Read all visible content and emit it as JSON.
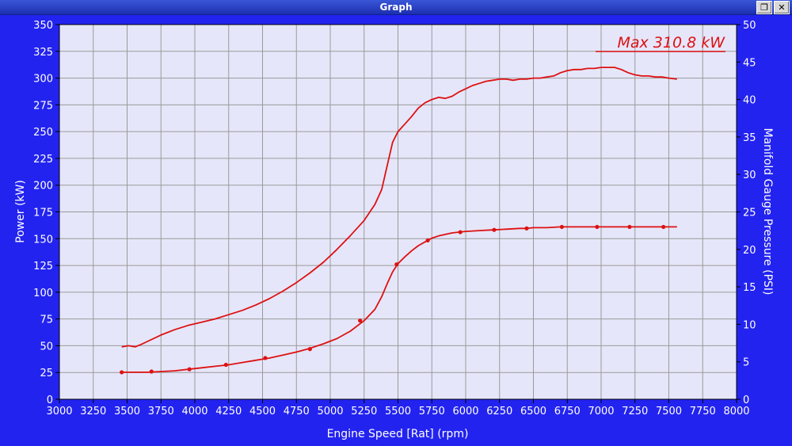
{
  "window": {
    "title": "Graph",
    "restore_symbol": "❐",
    "close_symbol": "✕"
  },
  "chart_data": {
    "type": "line",
    "xlabel": "Engine Speed [Rat] (rpm)",
    "ylabel_left": "Power (kW)",
    "ylabel_right": "Manifold Gauge Pressure (PSI)",
    "annotation": "Max 310.8 kW",
    "grid": true,
    "xlim": [
      3000,
      8000
    ],
    "ylim_left": [
      0,
      350
    ],
    "ylim_right": [
      0,
      50
    ],
    "xticks": [
      "3000",
      "3250",
      "3500",
      "3750",
      "4000",
      "4250",
      "4500",
      "4750",
      "5000",
      "5250",
      "5500",
      "5750",
      "6000",
      "6250",
      "6500",
      "6750",
      "7000",
      "7250",
      "7500",
      "7750",
      "8000"
    ],
    "yticks_left": [
      "0",
      "25",
      "50",
      "75",
      "100",
      "125",
      "150",
      "175",
      "200",
      "225",
      "250",
      "275",
      "300",
      "325",
      "350"
    ],
    "yticks_right": [
      "0",
      "5",
      "10",
      "15",
      "20",
      "25",
      "30",
      "35",
      "40",
      "45",
      "50"
    ],
    "colors": {
      "line": "#dd1111",
      "plot_bg": "#e6e6fa",
      "grid": "#9a9a9a",
      "frame_bg": "#2323f0",
      "tick_text": "#ffffff"
    },
    "series": [
      {
        "axis": "left",
        "markers": false,
        "x": [
          3460,
          3510,
          3560,
          3600,
          3650,
          3750,
          3850,
          3950,
          4050,
          4150,
          4250,
          4350,
          4450,
          4550,
          4650,
          4750,
          4850,
          4950,
          5050,
          5150,
          5250,
          5330,
          5380,
          5420,
          5460,
          5500,
          5550,
          5600,
          5650,
          5700,
          5750,
          5800,
          5850,
          5900,
          5950,
          6000,
          6050,
          6100,
          6150,
          6200,
          6250,
          6300,
          6350,
          6400,
          6450,
          6500,
          6550,
          6600,
          6650,
          6700,
          6750,
          6800,
          6850,
          6900,
          6950,
          7000,
          7050,
          7100,
          7150,
          7200,
          7250,
          7300,
          7350,
          7400,
          7450,
          7500,
          7560
        ],
        "y": [
          49,
          50,
          49,
          51,
          54,
          60,
          65,
          69,
          72,
          75,
          79,
          83,
          88,
          94,
          101,
          109,
          118,
          128,
          140,
          153,
          167,
          182,
          196,
          218,
          240,
          250,
          257,
          264,
          272,
          277,
          280,
          282,
          281,
          283,
          287,
          290,
          293,
          295,
          297,
          298,
          299,
          299,
          298,
          299,
          299,
          300,
          300,
          301,
          302,
          305,
          307,
          308,
          308,
          309,
          309,
          310,
          310,
          310,
          308,
          305,
          303,
          302,
          302,
          301,
          301,
          300,
          299
        ]
      },
      {
        "axis": "right",
        "markers": true,
        "x": [
          3460,
          3550,
          3650,
          3750,
          3850,
          3950,
          4050,
          4150,
          4250,
          4350,
          4450,
          4550,
          4650,
          4750,
          4850,
          4950,
          5050,
          5150,
          5250,
          5330,
          5380,
          5420,
          5460,
          5500,
          5550,
          5600,
          5650,
          5700,
          5750,
          5800,
          5850,
          5900,
          5950,
          6000,
          6100,
          6200,
          6300,
          6400,
          6450,
          6500,
          6600,
          6700,
          6800,
          6900,
          6950,
          7000,
          7100,
          7200,
          7300,
          7400,
          7450,
          7500,
          7560
        ],
        "y": [
          3.6,
          3.6,
          3.6,
          3.7,
          3.8,
          4.0,
          4.2,
          4.4,
          4.6,
          4.9,
          5.2,
          5.5,
          5.9,
          6.3,
          6.8,
          7.4,
          8.1,
          9.1,
          10.5,
          12.0,
          13.7,
          15.4,
          17.0,
          18.1,
          19.0,
          19.8,
          20.5,
          21.0,
          21.5,
          21.8,
          22.0,
          22.2,
          22.3,
          22.4,
          22.5,
          22.6,
          22.7,
          22.8,
          22.8,
          22.9,
          22.9,
          23.0,
          23.0,
          23.0,
          23.0,
          23.0,
          23.0,
          23.0,
          23.0,
          23.0,
          23.0,
          23.0,
          23.0
        ],
        "marker_x": [
          3460,
          3680,
          3960,
          4230,
          4520,
          4850,
          5220,
          5490,
          5720,
          5960,
          6210,
          6450,
          6710,
          6970,
          7210,
          7460
        ],
        "marker_y": [
          3.6,
          3.7,
          4.0,
          4.6,
          5.5,
          6.7,
          10.5,
          18.0,
          21.2,
          22.3,
          22.6,
          22.8,
          23.0,
          23.0,
          23.0,
          23.0
        ]
      }
    ]
  }
}
